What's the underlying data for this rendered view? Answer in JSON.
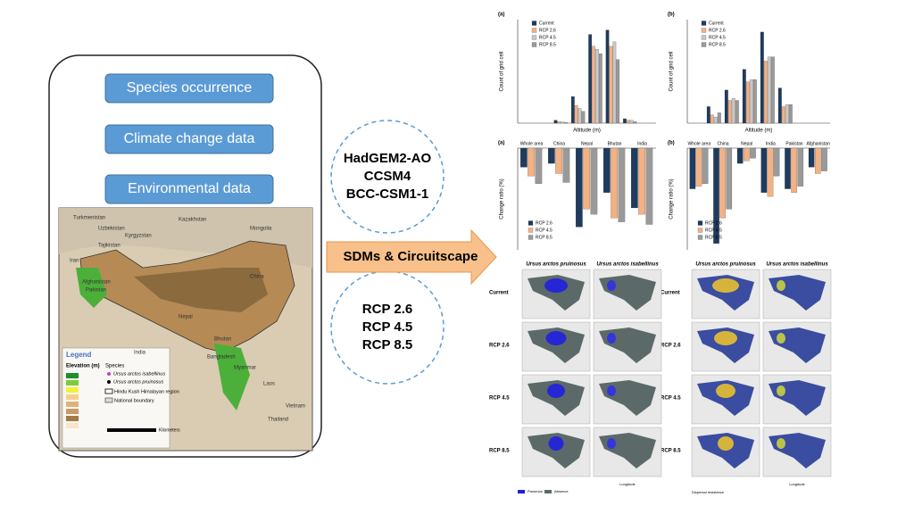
{
  "inputs": {
    "items": [
      "Species occurrence",
      "Climate change data",
      "Environmental data"
    ]
  },
  "map": {
    "countries": [
      "Turkmenistan",
      "Uzbekistan",
      "Kazakhstan",
      "Kyrgyzstan",
      "Tajikistan",
      "Mongolia",
      "Iran",
      "Afghanistan",
      "Pakistan",
      "China",
      "Nepal",
      "Bhutan",
      "India",
      "Bangladesh",
      "Myanmar",
      "Laos",
      "Vietnam",
      "Thailand"
    ],
    "legend": {
      "title": "Legend",
      "elevation": "Elevation (m)",
      "species": "Species",
      "species_items": [
        "Ursus arctos isabellinus",
        "Ursus arctos pruinosus"
      ],
      "region": "Hindu Kush Himalayan region",
      "boundary": "National boundary",
      "scale": "Kilometers"
    }
  },
  "models": {
    "gcms": [
      "HadGEM2-AO",
      "CCSM4",
      "BCC-CSM1-1"
    ],
    "rcps": [
      "RCP 2.6",
      "RCP 4.5",
      "RCP 8.5"
    ]
  },
  "method": "SDMs & Circuitscape",
  "charts": [
    {
      "type": "bar",
      "label": "(a)",
      "ylabel": "Count of grid cell",
      "xlabel": "Altitude (m)",
      "categories": [
        null,
        null,
        null,
        null,
        null,
        null,
        null,
        null
      ],
      "ylim": [
        0,
        700000
      ],
      "series": [
        {
          "name": "Current",
          "color": "#1f3b5e",
          "values": [
            0,
            0,
            20000,
            180000,
            600000,
            630000,
            30000,
            0
          ]
        },
        {
          "name": "RCP 2.6",
          "color": "#f4b183",
          "values": [
            0,
            0,
            10000,
            120000,
            520000,
            520000,
            20000,
            0
          ]
        },
        {
          "name": "RCP 4.5",
          "color": "#c8c8c8",
          "values": [
            0,
            0,
            8000,
            100000,
            500000,
            550000,
            20000,
            0
          ]
        },
        {
          "name": "RCP 8.5",
          "color": "#9a9a9a",
          "values": [
            0,
            0,
            5000,
            80000,
            470000,
            430000,
            10000,
            0
          ]
        }
      ]
    },
    {
      "type": "bar",
      "label": "(b)",
      "ylabel": "Count of grid cell",
      "xlabel": "Altitude (m)",
      "categories": [
        null,
        null,
        null,
        null,
        null,
        null,
        null,
        null
      ],
      "ylim": [
        0,
        250000
      ],
      "series": [
        {
          "name": "Current",
          "color": "#1f3b5e",
          "values": [
            0,
            40000,
            80000,
            130000,
            220000,
            85000,
            0,
            0
          ]
        },
        {
          "name": "RCP 2.6",
          "color": "#f4b183",
          "values": [
            0,
            20000,
            55000,
            100000,
            150000,
            40000,
            0,
            0
          ]
        },
        {
          "name": "RCP 4.5",
          "color": "#c8c8c8",
          "values": [
            0,
            15000,
            60000,
            105000,
            160000,
            45000,
            0,
            0
          ]
        },
        {
          "name": "RCP 8.5",
          "color": "#9a9a9a",
          "values": [
            0,
            25000,
            55000,
            105000,
            160000,
            45000,
            0,
            0
          ]
        }
      ]
    },
    {
      "type": "bar",
      "label": "(a)",
      "ylabel": "Change ratio (%)",
      "categories": [
        "Whole area",
        "China",
        "Nepal",
        "Bhutan",
        "India"
      ],
      "ylim": [
        -80,
        0
      ],
      "series": [
        {
          "name": "RCP 2.6",
          "color": "#1f3b5e",
          "values": [
            -15,
            -12,
            -62,
            -35,
            -47
          ]
        },
        {
          "name": "RCP 4.5",
          "color": "#f4b183",
          "values": [
            -22,
            -20,
            -48,
            -55,
            -52
          ]
        },
        {
          "name": "RCP 8.5",
          "color": "#9a9a9a",
          "values": [
            -28,
            -27,
            -52,
            -58,
            -60
          ]
        }
      ]
    },
    {
      "type": "bar",
      "label": "(b)",
      "ylabel": "Change ratio (%)",
      "categories": [
        "Whole area",
        "China",
        "Nepal",
        "India",
        "Pakistan",
        "Afghanistan"
      ],
      "ylim": [
        -80,
        0
      ],
      "series": [
        {
          "name": "RCP 2.6",
          "color": "#1f3b5e",
          "values": [
            -32,
            -75,
            -12,
            -35,
            -32,
            -15
          ]
        },
        {
          "name": "RCP 4.5",
          "color": "#f4b183",
          "values": [
            -30,
            -55,
            -10,
            -38,
            -35,
            -20
          ]
        },
        {
          "name": "RCP 8.5",
          "color": "#9a9a9a",
          "values": [
            -28,
            -48,
            -8,
            -22,
            -30,
            -18
          ]
        }
      ]
    }
  ],
  "maps": {
    "columns": [
      "Ursus arctos pruinosus",
      "Ursus arctos isabellinus",
      "Ursus arctos pruinosus",
      "Ursus arctos isabellinus"
    ],
    "rows": [
      "Current",
      "RCP 2.6",
      "RCP 4.5",
      "RCP 8.5"
    ],
    "legend": [
      "Presence",
      "Absence"
    ],
    "legend2": "Dispersal resistance",
    "xlabel": "Longitude"
  }
}
